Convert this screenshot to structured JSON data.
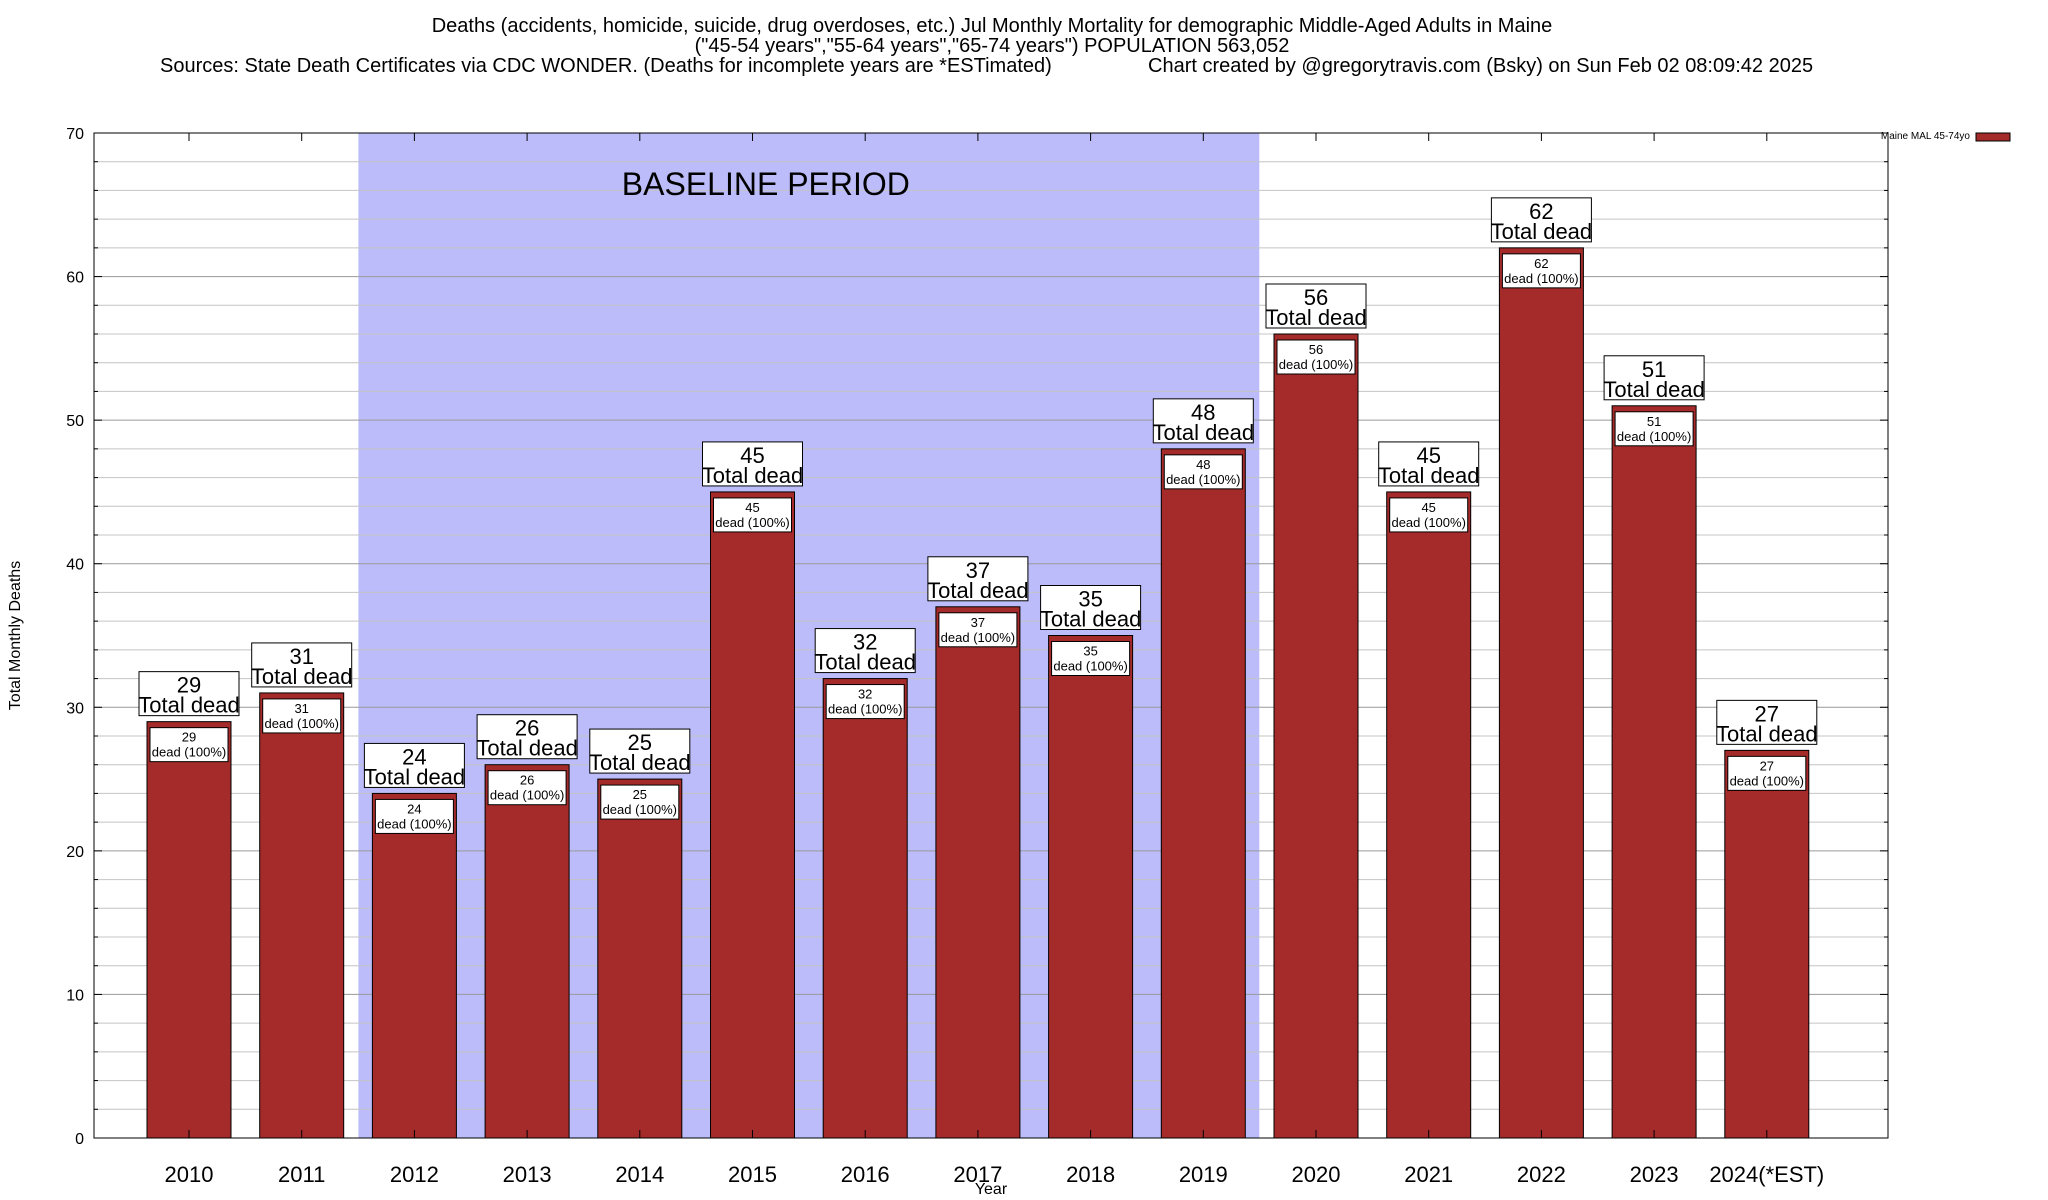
{
  "chart_data": {
    "type": "bar",
    "title_lines": [
      "Deaths (accidents, homicide, suicide, drug overdoses, etc.) Jul Monthly Mortality for demographic Middle-Aged Adults in Maine",
      "(\"45-54 years\",\"55-64 years\",\"65-74 years\") POPULATION 563,052"
    ],
    "sources_text": "Sources: State Death Certificates via CDC WONDER. (Deaths for incomplete years are *ESTimated)",
    "credit_text": "Chart created by @gregorytravis.com (Bsky) on Sun Feb 02 08:09:42 2025",
    "xlabel": "Year",
    "ylabel": "Total Monthly Deaths",
    "ylim": [
      0,
      70
    ],
    "y_ticks": [
      0,
      10,
      20,
      30,
      40,
      50,
      60,
      70
    ],
    "y_minor_step": 2,
    "categories": [
      "2010",
      "2011",
      "2012",
      "2013",
      "2014",
      "2015",
      "2016",
      "2017",
      "2018",
      "2019",
      "2020",
      "2021",
      "2022",
      "2023",
      "2024(*EST)"
    ],
    "series": [
      {
        "name": "Maine MAL 45-74yo",
        "values": [
          29,
          31,
          24,
          26,
          25,
          45,
          32,
          37,
          35,
          48,
          56,
          45,
          62,
          51,
          27
        ],
        "color": "#a52a2a"
      }
    ],
    "bar_top_label_suffix": "Total dead",
    "bar_inner_label_suffix": "dead (100%)",
    "baseline_period": {
      "label": "BASELINE PERIOD",
      "start": "2012",
      "end": "2019",
      "color": "#bcbcfa"
    },
    "grid": true,
    "legend_position": "top-right"
  }
}
